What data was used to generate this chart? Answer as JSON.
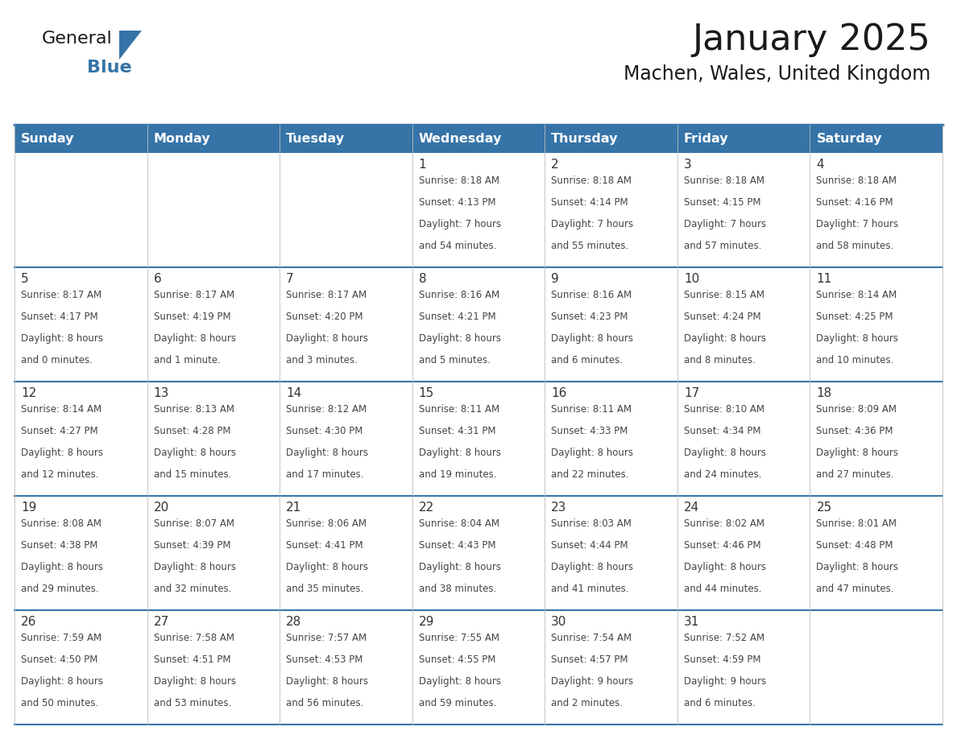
{
  "title": "January 2025",
  "subtitle": "Machen, Wales, United Kingdom",
  "header_bg": "#3674a8",
  "header_text_color": "#FFFFFF",
  "cell_bg": "#FFFFFF",
  "row_sep_color": "#3674a8",
  "col_sep_color": "#aaaaaa",
  "day_number_color": "#333333",
  "cell_text_color": "#444444",
  "days_of_week": [
    "Sunday",
    "Monday",
    "Tuesday",
    "Wednesday",
    "Thursday",
    "Friday",
    "Saturday"
  ],
  "weeks": [
    [
      {
        "day": null,
        "sunrise": null,
        "sunset": null,
        "daylight": null
      },
      {
        "day": null,
        "sunrise": null,
        "sunset": null,
        "daylight": null
      },
      {
        "day": null,
        "sunrise": null,
        "sunset": null,
        "daylight": null
      },
      {
        "day": 1,
        "sunrise": "8:18 AM",
        "sunset": "4:13 PM",
        "daylight": "7 hours",
        "daylight2": "and 54 minutes."
      },
      {
        "day": 2,
        "sunrise": "8:18 AM",
        "sunset": "4:14 PM",
        "daylight": "7 hours",
        "daylight2": "and 55 minutes."
      },
      {
        "day": 3,
        "sunrise": "8:18 AM",
        "sunset": "4:15 PM",
        "daylight": "7 hours",
        "daylight2": "and 57 minutes."
      },
      {
        "day": 4,
        "sunrise": "8:18 AM",
        "sunset": "4:16 PM",
        "daylight": "7 hours",
        "daylight2": "and 58 minutes."
      }
    ],
    [
      {
        "day": 5,
        "sunrise": "8:17 AM",
        "sunset": "4:17 PM",
        "daylight": "8 hours",
        "daylight2": "and 0 minutes."
      },
      {
        "day": 6,
        "sunrise": "8:17 AM",
        "sunset": "4:19 PM",
        "daylight": "8 hours",
        "daylight2": "and 1 minute."
      },
      {
        "day": 7,
        "sunrise": "8:17 AM",
        "sunset": "4:20 PM",
        "daylight": "8 hours",
        "daylight2": "and 3 minutes."
      },
      {
        "day": 8,
        "sunrise": "8:16 AM",
        "sunset": "4:21 PM",
        "daylight": "8 hours",
        "daylight2": "and 5 minutes."
      },
      {
        "day": 9,
        "sunrise": "8:16 AM",
        "sunset": "4:23 PM",
        "daylight": "8 hours",
        "daylight2": "and 6 minutes."
      },
      {
        "day": 10,
        "sunrise": "8:15 AM",
        "sunset": "4:24 PM",
        "daylight": "8 hours",
        "daylight2": "and 8 minutes."
      },
      {
        "day": 11,
        "sunrise": "8:14 AM",
        "sunset": "4:25 PM",
        "daylight": "8 hours",
        "daylight2": "and 10 minutes."
      }
    ],
    [
      {
        "day": 12,
        "sunrise": "8:14 AM",
        "sunset": "4:27 PM",
        "daylight": "8 hours",
        "daylight2": "and 12 minutes."
      },
      {
        "day": 13,
        "sunrise": "8:13 AM",
        "sunset": "4:28 PM",
        "daylight": "8 hours",
        "daylight2": "and 15 minutes."
      },
      {
        "day": 14,
        "sunrise": "8:12 AM",
        "sunset": "4:30 PM",
        "daylight": "8 hours",
        "daylight2": "and 17 minutes."
      },
      {
        "day": 15,
        "sunrise": "8:11 AM",
        "sunset": "4:31 PM",
        "daylight": "8 hours",
        "daylight2": "and 19 minutes."
      },
      {
        "day": 16,
        "sunrise": "8:11 AM",
        "sunset": "4:33 PM",
        "daylight": "8 hours",
        "daylight2": "and 22 minutes."
      },
      {
        "day": 17,
        "sunrise": "8:10 AM",
        "sunset": "4:34 PM",
        "daylight": "8 hours",
        "daylight2": "and 24 minutes."
      },
      {
        "day": 18,
        "sunrise": "8:09 AM",
        "sunset": "4:36 PM",
        "daylight": "8 hours",
        "daylight2": "and 27 minutes."
      }
    ],
    [
      {
        "day": 19,
        "sunrise": "8:08 AM",
        "sunset": "4:38 PM",
        "daylight": "8 hours",
        "daylight2": "and 29 minutes."
      },
      {
        "day": 20,
        "sunrise": "8:07 AM",
        "sunset": "4:39 PM",
        "daylight": "8 hours",
        "daylight2": "and 32 minutes."
      },
      {
        "day": 21,
        "sunrise": "8:06 AM",
        "sunset": "4:41 PM",
        "daylight": "8 hours",
        "daylight2": "and 35 minutes."
      },
      {
        "day": 22,
        "sunrise": "8:04 AM",
        "sunset": "4:43 PM",
        "daylight": "8 hours",
        "daylight2": "and 38 minutes."
      },
      {
        "day": 23,
        "sunrise": "8:03 AM",
        "sunset": "4:44 PM",
        "daylight": "8 hours",
        "daylight2": "and 41 minutes."
      },
      {
        "day": 24,
        "sunrise": "8:02 AM",
        "sunset": "4:46 PM",
        "daylight": "8 hours",
        "daylight2": "and 44 minutes."
      },
      {
        "day": 25,
        "sunrise": "8:01 AM",
        "sunset": "4:48 PM",
        "daylight": "8 hours",
        "daylight2": "and 47 minutes."
      }
    ],
    [
      {
        "day": 26,
        "sunrise": "7:59 AM",
        "sunset": "4:50 PM",
        "daylight": "8 hours",
        "daylight2": "and 50 minutes."
      },
      {
        "day": 27,
        "sunrise": "7:58 AM",
        "sunset": "4:51 PM",
        "daylight": "8 hours",
        "daylight2": "and 53 minutes."
      },
      {
        "day": 28,
        "sunrise": "7:57 AM",
        "sunset": "4:53 PM",
        "daylight": "8 hours",
        "daylight2": "and 56 minutes."
      },
      {
        "day": 29,
        "sunrise": "7:55 AM",
        "sunset": "4:55 PM",
        "daylight": "8 hours",
        "daylight2": "and 59 minutes."
      },
      {
        "day": 30,
        "sunrise": "7:54 AM",
        "sunset": "4:57 PM",
        "daylight": "9 hours",
        "daylight2": "and 2 minutes."
      },
      {
        "day": 31,
        "sunrise": "7:52 AM",
        "sunset": "4:59 PM",
        "daylight": "9 hours",
        "daylight2": "and 6 minutes."
      },
      {
        "day": null,
        "sunrise": null,
        "sunset": null,
        "daylight": null,
        "daylight2": null
      }
    ]
  ],
  "logo_text_color_general": "#1a1a1a",
  "logo_text_color_blue": "#3674a8",
  "logo_triangle_color": "#3674a8",
  "title_fontsize": 32,
  "subtitle_fontsize": 17,
  "header_fontsize": 11.5,
  "day_num_fontsize": 11,
  "cell_fontsize": 8.5
}
